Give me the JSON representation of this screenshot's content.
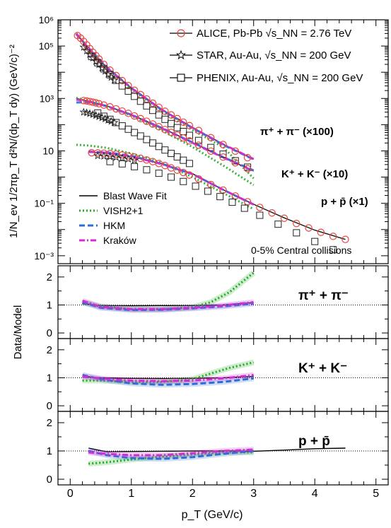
{
  "chart_data": [
    {
      "type": "scatter",
      "xlabel": "p_T (GeV/c)",
      "ylabel": "1/N_ev 1/2πp_T d²N/(dp_T dy) (GeV/c)⁻²",
      "ylog": true,
      "xlim": [
        -0.2,
        5.2
      ],
      "ylim": [
        0.0005,
        1000000
      ],
      "y_tick_labels": [
        "10⁶",
        "10⁵",
        "10³",
        "10",
        "10⁻¹",
        "10⁻³"
      ],
      "x_tick_labels": [
        "0",
        "1",
        "2",
        "3",
        "4",
        "5"
      ],
      "legend": [
        {
          "name": "ALICE, Pb-Pb √s_NN = 2.76 TeV",
          "marker": "circle",
          "color": "#e8443a"
        },
        {
          "name": "STAR, Au-Au, √s_NN = 200 GeV",
          "marker": "star",
          "color": "#000000"
        },
        {
          "name": "PHENIX, Au-Au, √s_NN = 200 GeV",
          "marker": "square",
          "color": "#000000"
        }
      ],
      "model_legend": [
        {
          "name": "Blast Wave Fit",
          "color": "#000000",
          "style": "solid"
        },
        {
          "name": "VISH2+1",
          "color": "#22a822",
          "style": "dotted"
        },
        {
          "name": "HKM",
          "color": "#2a6fd6",
          "style": "dashed"
        },
        {
          "name": "Kraków",
          "color": "#d62ad6",
          "style": "dashdot"
        }
      ],
      "annotations": [
        "π⁺ + π⁻ (×100)",
        "K⁺ + K⁻ (×10)",
        "p + p̄ (×1)",
        "0-5% Central collisions"
      ],
      "series": [
        {
          "name": "π⁺ + π⁻ ALICE",
          "group": "pion",
          "marker": "circle",
          "x": [
            0.12,
            0.17,
            0.22,
            0.27,
            0.32,
            0.37,
            0.42,
            0.47,
            0.55,
            0.65,
            0.75,
            0.85,
            0.95,
            1.05,
            1.15,
            1.25,
            1.35,
            1.45,
            1.55,
            1.65,
            1.75,
            1.85,
            1.95,
            2.1,
            2.3,
            2.5,
            2.7,
            2.9
          ],
          "y": [
            250000,
            200000,
            150000,
            110000,
            80000,
            58000,
            43000,
            32000,
            20000,
            12000,
            7500,
            4800,
            3100,
            2050,
            1400,
            950,
            660,
            460,
            325,
            235,
            170,
            125,
            92,
            60,
            32,
            17.5,
            9.8,
            5.5
          ]
        },
        {
          "name": "π⁺ + π⁻ STAR",
          "group": "pion",
          "marker": "star",
          "x": [
            0.22,
            0.27,
            0.32,
            0.37,
            0.42,
            0.47,
            0.52,
            0.57,
            0.62,
            0.67,
            0.72
          ],
          "y": [
            90000,
            65000,
            48000,
            35000,
            26000,
            19500,
            14500,
            11000,
            8400,
            6400,
            4900
          ]
        },
        {
          "name": "π⁺ + π⁻ PHENIX",
          "group": "pion",
          "marker": "square",
          "x": [
            0.35,
            0.45,
            0.55,
            0.65,
            0.75,
            0.85,
            0.95,
            1.05,
            1.15,
            1.25,
            1.35,
            1.45,
            1.55,
            1.65,
            1.75,
            1.85,
            1.95,
            2.1,
            2.3,
            2.5,
            2.7,
            2.9
          ],
          "y": [
            40000,
            23000,
            13500,
            8000,
            4900,
            3000,
            1900,
            1200,
            780,
            520,
            350,
            235,
            160,
            110,
            77,
            55,
            39,
            25,
            13.5,
            7.5,
            4.2,
            2.4
          ]
        },
        {
          "name": "K⁺ + K⁻ ALICE",
          "group": "kaon",
          "marker": "circle",
          "x": [
            0.22,
            0.27,
            0.32,
            0.37,
            0.42,
            0.47,
            0.55,
            0.65,
            0.75,
            0.85,
            0.95,
            1.05,
            1.15,
            1.25,
            1.35,
            1.45,
            1.55,
            1.65,
            1.75,
            1.85,
            1.95,
            2.1,
            2.3,
            2.5,
            2.7,
            2.9
          ],
          "y": [
            830,
            800,
            760,
            720,
            680,
            630,
            560,
            480,
            400,
            330,
            270,
            215,
            170,
            135,
            106,
            83,
            65,
            51,
            40,
            31,
            24,
            16.5,
            9.8,
            5.8,
            3.5,
            2.1
          ]
        },
        {
          "name": "K⁺ + K⁻ STAR",
          "group": "kaon",
          "marker": "star",
          "x": [
            0.22,
            0.27,
            0.32,
            0.37,
            0.42,
            0.47,
            0.52,
            0.57,
            0.62,
            0.67,
            0.72
          ],
          "y": [
            300,
            285,
            265,
            245,
            225,
            205,
            185,
            168,
            150,
            135,
            120
          ]
        },
        {
          "name": "K⁺ + K⁻ PHENIX",
          "group": "kaon",
          "marker": "square",
          "x": [
            0.45,
            0.55,
            0.65,
            0.75,
            0.85,
            0.95,
            1.05,
            1.15,
            1.25,
            1.35,
            1.45,
            1.55,
            1.65,
            1.75,
            1.85,
            1.95
          ],
          "y": [
            280,
            210,
            160,
            120,
            90,
            67,
            50,
            37,
            27,
            20,
            14.7,
            10.8,
            8,
            5.9,
            4.4,
            3.3
          ]
        },
        {
          "name": "p + p̄ ALICE",
          "group": "proton",
          "marker": "circle",
          "x": [
            0.35,
            0.45,
            0.55,
            0.65,
            0.75,
            0.85,
            0.95,
            1.05,
            1.15,
            1.25,
            1.35,
            1.45,
            1.55,
            1.65,
            1.75,
            1.85,
            1.95,
            2.1,
            2.3,
            2.5,
            2.7,
            2.9,
            3.1,
            3.3,
            3.5,
            3.7,
            3.9,
            4.1,
            4.3,
            4.5
          ],
          "y": [
            8.5,
            8.4,
            8.2,
            7.9,
            7.5,
            7,
            6.4,
            5.8,
            5.2,
            4.5,
            3.9,
            3.3,
            2.75,
            2.25,
            1.85,
            1.5,
            1.2,
            0.85,
            0.52,
            0.32,
            0.19,
            0.115,
            0.07,
            0.043,
            0.027,
            0.017,
            0.0115,
            0.0078,
            0.0055,
            0.0042
          ]
        },
        {
          "name": "p + p̄ STAR",
          "group": "proton",
          "marker": "star",
          "x": [
            0.45,
            0.55,
            0.65,
            0.75,
            0.85,
            0.95,
            1.05
          ],
          "y": [
            6.5,
            6.3,
            6,
            5.7,
            5.3,
            4.9,
            4.4
          ]
        },
        {
          "name": "p + p̄ PHENIX",
          "group": "proton",
          "marker": "square",
          "x": [
            0.65,
            0.85,
            1.05,
            1.25,
            1.45,
            1.65,
            1.85,
            2.05,
            2.25,
            2.45,
            2.65,
            2.85,
            3.1,
            3.4,
            3.7,
            4.0,
            4.3
          ],
          "y": [
            3.9,
            3.2,
            2.5,
            1.9,
            1.4,
            1.0,
            0.68,
            0.45,
            0.29,
            0.18,
            0.11,
            0.065,
            0.035,
            0.016,
            0.0075,
            0.0035,
            0.0017
          ]
        }
      ],
      "model_curves": [
        {
          "model": "Blast Wave Fit",
          "group": "pion",
          "x": [
            0.1,
            0.3,
            0.6,
            1.0,
            1.5,
            2.0,
            2.5,
            3.0
          ],
          "y": [
            300000,
            80000,
            15000,
            2500,
            380,
            78,
            18,
            4.8
          ]
        },
        {
          "model": "VISH2+1",
          "group": "pion",
          "x": [
            0.1,
            0.3,
            0.6,
            1.0,
            1.5,
            2.0,
            2.5,
            3.0
          ],
          "y": [
            300000,
            80000,
            14000,
            2200,
            320,
            62,
            14,
            0.9
          ]
        },
        {
          "model": "HKM",
          "group": "pion",
          "x": [
            0.1,
            0.3,
            0.6,
            1.0,
            1.5,
            2.0,
            2.5,
            3.0
          ],
          "y": [
            280000,
            85000,
            15500,
            2500,
            360,
            74,
            17,
            4.7
          ]
        },
        {
          "model": "Kraków",
          "group": "pion",
          "x": [
            0.1,
            0.3,
            0.6,
            1.0,
            1.5,
            2.0,
            2.5,
            3.0
          ],
          "y": [
            300000,
            82000,
            15000,
            2500,
            370,
            76,
            18,
            4.9
          ]
        },
        {
          "model": "Blast Wave Fit",
          "group": "kaon",
          "x": [
            0.1,
            0.3,
            0.6,
            1.0,
            1.5,
            2.0,
            2.5,
            3.0
          ],
          "y": [
            1000,
            780,
            520,
            240,
            75,
            21,
            5.8,
            1.7
          ]
        },
        {
          "model": "VISH2+1",
          "group": "kaon",
          "x": [
            0.1,
            0.3,
            0.6,
            1.0,
            1.5,
            2.0,
            2.5,
            3.0
          ],
          "y": [
            1050,
            800,
            500,
            220,
            60,
            14,
            2.8,
            0.5
          ]
        },
        {
          "model": "HKM",
          "group": "kaon",
          "x": [
            0.1,
            0.3,
            0.6,
            1.0,
            1.5,
            2.0,
            2.5,
            3.0
          ],
          "y": [
            700,
            720,
            510,
            240,
            75,
            21,
            5.8,
            1.8
          ]
        },
        {
          "model": "Kraków",
          "group": "kaon",
          "x": [
            0.1,
            0.3,
            0.6,
            1.0,
            1.5,
            2.0,
            2.5,
            3.0
          ],
          "y": [
            900,
            770,
            510,
            235,
            72,
            20,
            5.6,
            1.7
          ]
        },
        {
          "model": "Blast Wave Fit",
          "group": "proton",
          "x": [
            0.3,
            0.6,
            1.0,
            1.5,
            2.0,
            2.5,
            3.0,
            3.5,
            4.0,
            4.5
          ],
          "y": [
            8.8,
            8,
            6.1,
            3.2,
            1.35,
            0.33,
            0.092,
            0.028,
            0.0095,
            0.0042
          ]
        },
        {
          "model": "VISH2+1",
          "group": "proton",
          "x": [
            0.1,
            0.3,
            0.6,
            1.0,
            1.5,
            2.0,
            2.5,
            3.0
          ],
          "y": [
            17,
            16,
            13,
            8,
            3.5,
            1.0,
            0.25,
            0.06
          ]
        },
        {
          "model": "HKM",
          "group": "proton",
          "x": [
            0.3,
            0.6,
            1.0,
            1.5,
            2.0,
            2.5,
            3.0
          ],
          "y": [
            9.2,
            8.8,
            6.5,
            3.2,
            1.3,
            0.33,
            0.09
          ]
        },
        {
          "model": "Kraków",
          "group": "proton",
          "x": [
            0.3,
            0.6,
            1.0,
            1.5,
            2.0,
            2.5,
            3.0
          ],
          "y": [
            9.5,
            8.5,
            6.2,
            3.1,
            1.3,
            0.33,
            0.09
          ]
        }
      ]
    },
    {
      "type": "line",
      "panel": "ratio",
      "label": "π⁺ + π⁻",
      "ylabel": "Data/Model",
      "ylim": [
        -0.2,
        2.4
      ],
      "y_tick_labels": [
        "0",
        "1",
        "2"
      ],
      "series": [
        {
          "name": "Blast Wave Fit",
          "x": [
            0.2,
            0.5,
            1.0,
            1.5,
            2.0,
            2.5,
            3.0
          ],
          "y": [
            1.05,
            0.98,
            0.97,
            0.98,
            0.98,
            1.0,
            1.08
          ]
        },
        {
          "name": "VISH2+1",
          "x": [
            0.2,
            0.5,
            1.0,
            1.5,
            2.0,
            2.3,
            2.6,
            2.8,
            3.0
          ],
          "y": [
            1.1,
            0.95,
            0.85,
            0.85,
            0.92,
            1.1,
            1.45,
            1.8,
            2.15
          ]
        },
        {
          "name": "HKM",
          "x": [
            0.2,
            0.5,
            1.0,
            1.5,
            2.0,
            2.5,
            3.0
          ],
          "y": [
            1.1,
            0.9,
            0.82,
            0.83,
            0.88,
            0.95,
            1.05
          ]
        },
        {
          "name": "Kraków",
          "x": [
            0.2,
            0.5,
            1.0,
            1.5,
            2.0,
            2.5,
            3.0
          ],
          "y": [
            1.15,
            0.93,
            0.85,
            0.85,
            0.9,
            0.98,
            1.1
          ]
        }
      ]
    },
    {
      "type": "line",
      "panel": "ratio",
      "label": "K⁺ + K⁻",
      "ylabel": "Data/Model",
      "ylim": [
        -0.2,
        2.4
      ],
      "y_tick_labels": [
        "0",
        "1",
        "2"
      ],
      "series": [
        {
          "name": "Blast Wave Fit",
          "x": [
            0.2,
            0.5,
            1.0,
            1.5,
            2.0,
            2.5,
            3.0
          ],
          "y": [
            1.05,
            1.0,
            0.98,
            0.97,
            0.98,
            1.0,
            1.05
          ]
        },
        {
          "name": "VISH2+1",
          "x": [
            0.2,
            0.5,
            1.0,
            1.5,
            2.0,
            2.3,
            2.6,
            3.0
          ],
          "y": [
            0.9,
            0.9,
            0.85,
            0.85,
            0.95,
            1.15,
            1.35,
            1.55
          ]
        },
        {
          "name": "HKM",
          "x": [
            0.2,
            0.5,
            1.0,
            1.5,
            2.0,
            2.5,
            3.0
          ],
          "y": [
            1.1,
            0.95,
            0.8,
            0.75,
            0.78,
            0.85,
            0.98
          ]
        },
        {
          "name": "Kraków",
          "x": [
            0.2,
            0.5,
            1.0,
            1.5,
            2.0,
            2.5,
            3.0
          ],
          "y": [
            1.05,
            0.97,
            0.9,
            0.88,
            0.9,
            0.98,
            1.1
          ]
        }
      ]
    },
    {
      "type": "line",
      "panel": "ratio",
      "label": "p + p̄",
      "ylabel": "Data/Model",
      "ylim": [
        -0.2,
        2.4
      ],
      "y_tick_labels": [
        "0",
        "1",
        "2"
      ],
      "x_tick_labels": [
        "0",
        "1",
        "2",
        "3",
        "4",
        "5"
      ],
      "series": [
        {
          "name": "Blast Wave Fit",
          "x": [
            0.3,
            0.6,
            1.0,
            1.5,
            2.0,
            2.5,
            3.0,
            3.5,
            4.0,
            4.5
          ],
          "y": [
            1.1,
            0.97,
            0.98,
            0.99,
            1.0,
            1.0,
            0.99,
            1.03,
            1.08,
            1.1
          ]
        },
        {
          "name": "VISH2+1",
          "x": [
            0.3,
            0.6,
            1.0,
            1.5,
            2.0,
            2.5,
            3.0
          ],
          "y": [
            0.55,
            0.6,
            0.7,
            0.8,
            0.88,
            0.95,
            0.95
          ]
        },
        {
          "name": "HKM",
          "x": [
            0.3,
            0.6,
            1.0,
            1.5,
            2.0,
            2.5,
            3.0
          ],
          "y": [
            1.0,
            0.85,
            0.75,
            0.72,
            0.78,
            0.9,
            1.0
          ]
        },
        {
          "name": "Kraków",
          "x": [
            0.3,
            0.6,
            1.0,
            1.5,
            2.0,
            2.5,
            3.0
          ],
          "y": [
            0.95,
            0.9,
            0.85,
            0.85,
            0.92,
            1.0,
            1.05
          ]
        }
      ]
    }
  ]
}
